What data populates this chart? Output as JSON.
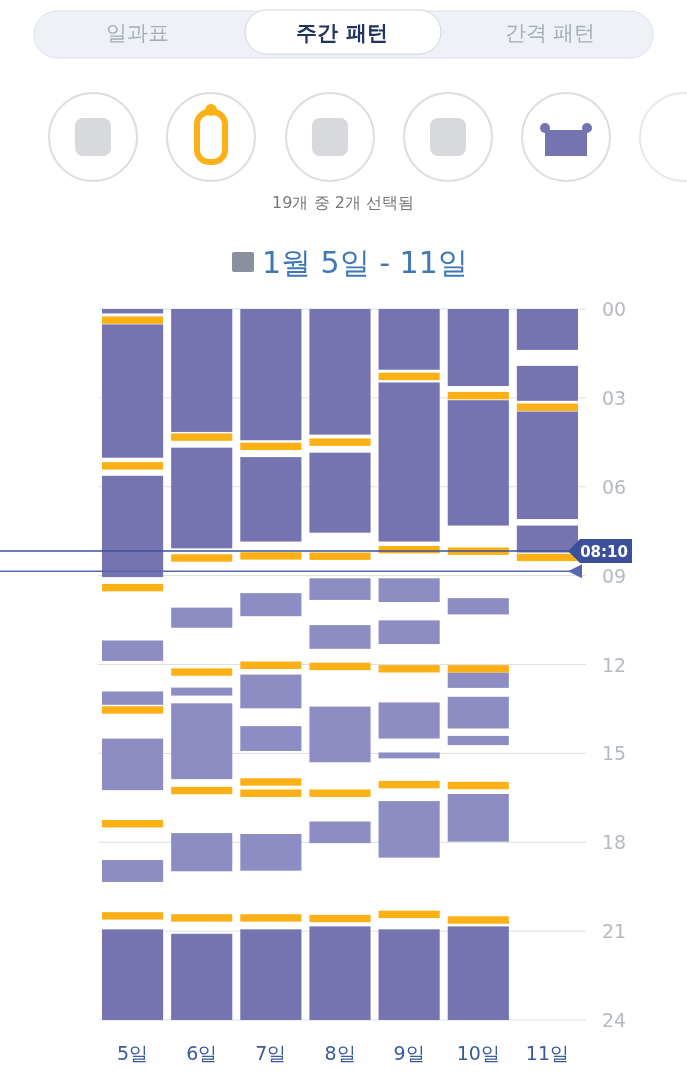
{
  "chart_data": {
    "type": "bar",
    "title": "1월 5일 - 11일",
    "annotations": [
      "일과표",
      "주간 패턴",
      "간격 패턴",
      "19개 중 2개 선택됨"
    ],
    "categories": [
      "5일",
      "6일",
      "7일",
      "8일",
      "9일",
      "10일",
      "11일"
    ],
    "ylim": [
      24,
      0
    ],
    "yticks": [
      {
        "value": 0,
        "label": "00"
      },
      {
        "value": 3,
        "label": "03"
      },
      {
        "value": 6,
        "label": "06"
      },
      {
        "value": 9,
        "label": "09"
      },
      {
        "value": 12,
        "label": "12"
      },
      {
        "value": 15,
        "label": "15"
      },
      {
        "value": 18,
        "label": "18"
      },
      {
        "value": 21,
        "label": "21"
      },
      {
        "value": 24,
        "label": "24"
      }
    ],
    "grid": "y",
    "series": [
      {
        "color": "#7574b0",
        "base": [
          0,
          0,
          0,
          0,
          0,
          0,
          0
        ],
        "values": [
          0.15,
          4.15,
          4.43,
          4.24,
          2.05,
          2.6,
          1.38
        ]
      },
      {
        "color": "#7574b0",
        "base": [
          0.52,
          4.68,
          5.0,
          4.85,
          2.48,
          3.08,
          1.92
        ],
        "values": [
          4.5,
          3.4,
          2.85,
          2.7,
          5.37,
          4.23,
          1.18
        ]
      },
      {
        "color": "#7574b0",
        "base": [
          5.63,
          21.09,
          20.94,
          20.84,
          20.94,
          20.84,
          3.46
        ],
        "values": [
          3.42,
          2.91,
          3.06,
          3.16,
          3.06,
          3.16,
          3.63
        ]
      },
      {
        "color": "#7574b0",
        "base": [
          20.94,
          null,
          null,
          null,
          null,
          null,
          7.31
        ],
        "values": [
          3.06,
          null,
          null,
          null,
          null,
          null,
          0.91
        ]
      },
      {
        "color": "#8e8dc3",
        "base": [
          11.19,
          10.08,
          9.59,
          9.09,
          9.09,
          9.76,
          null
        ],
        "values": [
          0.69,
          0.68,
          0.78,
          0.73,
          0.8,
          0.55,
          null
        ]
      },
      {
        "color": "#8e8dc3",
        "base": [
          12.91,
          12.78,
          12.34,
          10.67,
          10.51,
          12.27,
          null
        ],
        "values": [
          0.45,
          0.27,
          1.14,
          0.8,
          0.8,
          0.52,
          null
        ]
      },
      {
        "color": "#8e8dc3",
        "base": [
          14.5,
          13.31,
          14.08,
          13.42,
          13.28,
          13.09,
          null
        ],
        "values": [
          1.74,
          2.56,
          0.84,
          1.88,
          1.22,
          1.07,
          null
        ]
      },
      {
        "color": "#8e8dc3",
        "base": [
          18.6,
          17.69,
          17.72,
          17.3,
          14.97,
          14.41,
          null
        ],
        "values": [
          0.74,
          1.29,
          1.24,
          0.73,
          0.2,
          0.31,
          null
        ]
      },
      {
        "color": "#8e8dc3",
        "base": [
          null,
          null,
          null,
          null,
          16.61,
          16.37,
          null
        ],
        "values": [
          null,
          null,
          null,
          null,
          1.91,
          1.61,
          null
        ]
      },
      {
        "color": "#fbb016",
        "base": [
          0.25,
          4.2,
          4.51,
          4.37,
          2.15,
          2.8,
          3.19
        ],
        "values": [
          0.25,
          0.25,
          0.25,
          0.25,
          0.25,
          0.25,
          0.25
        ]
      },
      {
        "color": "#fbb016",
        "base": [
          5.17,
          8.28,
          8.21,
          8.22,
          8.0,
          8.05,
          8.26
        ],
        "values": [
          0.25,
          0.25,
          0.25,
          0.25,
          0.25,
          0.25,
          0.25
        ]
      },
      {
        "color": "#fbb016",
        "base": [
          9.28,
          12.13,
          11.9,
          11.94,
          12.02,
          12.02,
          null
        ],
        "values": [
          0.25,
          0.25,
          0.25,
          0.25,
          0.25,
          0.25,
          null
        ]
      },
      {
        "color": "#fbb016",
        "base": [
          13.41,
          16.13,
          15.84,
          16.22,
          15.93,
          15.96,
          null
        ],
        "values": [
          0.25,
          0.25,
          0.25,
          0.25,
          0.25,
          0.25,
          null
        ]
      },
      {
        "color": "#fbb016",
        "base": [
          17.25,
          20.43,
          16.22,
          20.45,
          20.31,
          20.5,
          null
        ],
        "values": [
          0.25,
          0.25,
          0.25,
          0.25,
          0.25,
          0.25,
          null
        ]
      },
      {
        "color": "#fbb016",
        "base": [
          20.36,
          null,
          20.43,
          null,
          null,
          null,
          null
        ],
        "values": [
          0.25,
          null,
          0.25,
          null,
          null,
          null,
          null
        ]
      }
    ],
    "ref_lines": [
      {
        "axis": "y",
        "value": 8.17,
        "label": "08:10",
        "color": "#3b4f9a"
      },
      {
        "axis": "y",
        "value": 8.85,
        "color": "#5a66ad"
      }
    ]
  }
}
